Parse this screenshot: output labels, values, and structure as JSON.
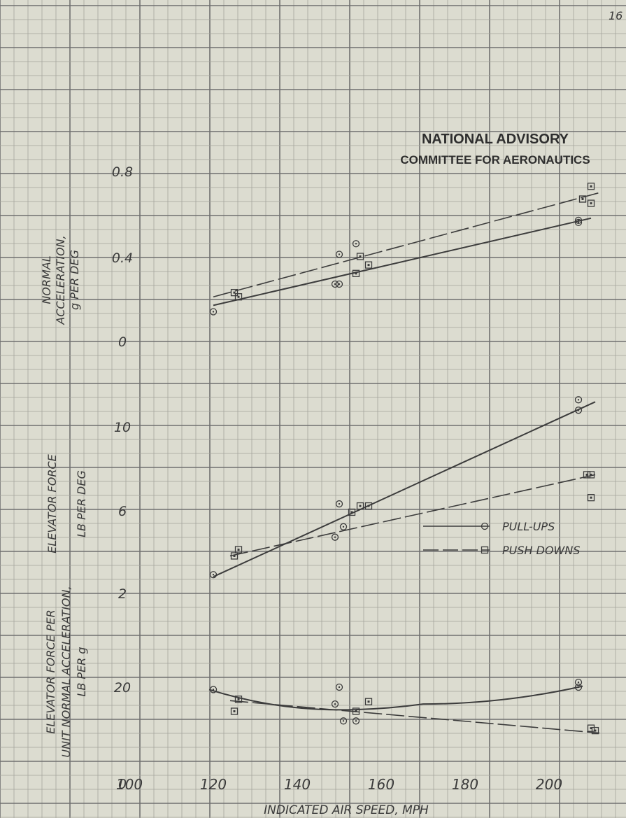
{
  "page_number": "16",
  "stamp": {
    "line1": "NATIONAL ADVISORY",
    "line2": "COMMITTEE FOR AERONAUTICS"
  },
  "x_axis": {
    "label": "INDICATED AIR SPEED, MPH",
    "ticks": [
      "100",
      "120",
      "140",
      "160",
      "180",
      "200"
    ],
    "range": [
      100,
      210
    ]
  },
  "chart_data": [
    {
      "type": "scatter",
      "ylabel": [
        "NORMAL",
        "ACCELERATION,",
        "g PER DEG"
      ],
      "yticks": [
        "0",
        "0.4",
        "0.8"
      ],
      "ylim": [
        0,
        0.8
      ],
      "series": [
        {
          "name": "PULL-UPS",
          "marker": "circle",
          "points": [
            [
              120,
              0.14
            ],
            [
              149,
              0.27
            ],
            [
              150,
              0.27
            ],
            [
              150,
              0.41
            ],
            [
              154,
              0.46
            ],
            [
              207,
              0.56
            ],
            [
              207,
              0.57
            ]
          ],
          "fit": [
            [
              120,
              0.17
            ],
            [
              210,
              0.58
            ]
          ],
          "fit_style": "solid"
        },
        {
          "name": "PUSH DOWNS",
          "marker": "square",
          "points": [
            [
              125,
              0.23
            ],
            [
              126,
              0.21
            ],
            [
              154,
              0.32
            ],
            [
              155,
              0.4
            ],
            [
              157,
              0.36
            ],
            [
              208,
              0.67
            ],
            [
              210,
              0.73
            ],
            [
              210,
              0.65
            ]
          ],
          "fit": [
            [
              120,
              0.21
            ],
            [
              212,
              0.7
            ]
          ],
          "fit_style": "dashed"
        }
      ]
    },
    {
      "type": "scatter",
      "ylabel": [
        "ELEVATOR FORCE",
        "LB PER DEG"
      ],
      "yticks": [
        "2",
        "6",
        "10"
      ],
      "ylim": [
        0,
        12
      ],
      "series": [
        {
          "name": "PULL-UPS",
          "marker": "circle",
          "points": [
            [
              120,
              2.9
            ],
            [
              149,
              4.7
            ],
            [
              150,
              6.3
            ],
            [
              151,
              5.2
            ],
            [
              207,
              10.8
            ],
            [
              207,
              11.3
            ]
          ],
          "fit": [
            [
              120,
              2.8
            ],
            [
              211,
              11.2
            ]
          ],
          "fit_style": "solid"
        },
        {
          "name": "PUSH DOWNS",
          "marker": "square",
          "points": [
            [
              125,
              3.8
            ],
            [
              126,
              4.1
            ],
            [
              153,
              5.9
            ],
            [
              155,
              6.2
            ],
            [
              157,
              6.2
            ],
            [
              209,
              7.7
            ],
            [
              210,
              7.7
            ],
            [
              210,
              6.6
            ]
          ],
          "fit": [
            [
              124,
              3.8
            ],
            [
              211,
              7.7
            ]
          ],
          "fit_style": "dashed"
        }
      ]
    },
    {
      "type": "scatter",
      "ylabel": [
        "ELEVATOR FORCE PER",
        "UNIT NORMAL ACCELERATION,",
        "LB PER g"
      ],
      "yticks": [
        "0",
        "20"
      ],
      "ylim": [
        0,
        26
      ],
      "series": [
        {
          "name": "PULL-UPS",
          "marker": "circle",
          "points": [
            [
              120,
              19.5
            ],
            [
              149,
              16.5
            ],
            [
              150,
              20
            ],
            [
              151,
              13
            ],
            [
              154,
              13
            ],
            [
              207,
              20
            ],
            [
              207,
              21
            ]
          ],
          "fit": [
            [
              119,
              19.5
            ],
            [
              150,
              15.3
            ],
            [
              170,
              16.5
            ],
            [
              208,
              20.2
            ]
          ],
          "fit_style": "solid"
        },
        {
          "name": "PUSH DOWNS",
          "marker": "square",
          "points": [
            [
              125,
              15
            ],
            [
              126,
              17.5
            ],
            [
              154,
              15
            ],
            [
              157,
              17
            ],
            [
              210,
              11.5
            ],
            [
              211,
              11
            ]
          ],
          "fit": [
            [
              124,
              17.2
            ],
            [
              212,
              10.5
            ]
          ],
          "fit_style": "dashed"
        }
      ]
    }
  ],
  "legend": [
    {
      "label": "PULL-UPS",
      "marker": "circle"
    },
    {
      "label": "PUSH DOWNS",
      "marker": "square"
    }
  ]
}
